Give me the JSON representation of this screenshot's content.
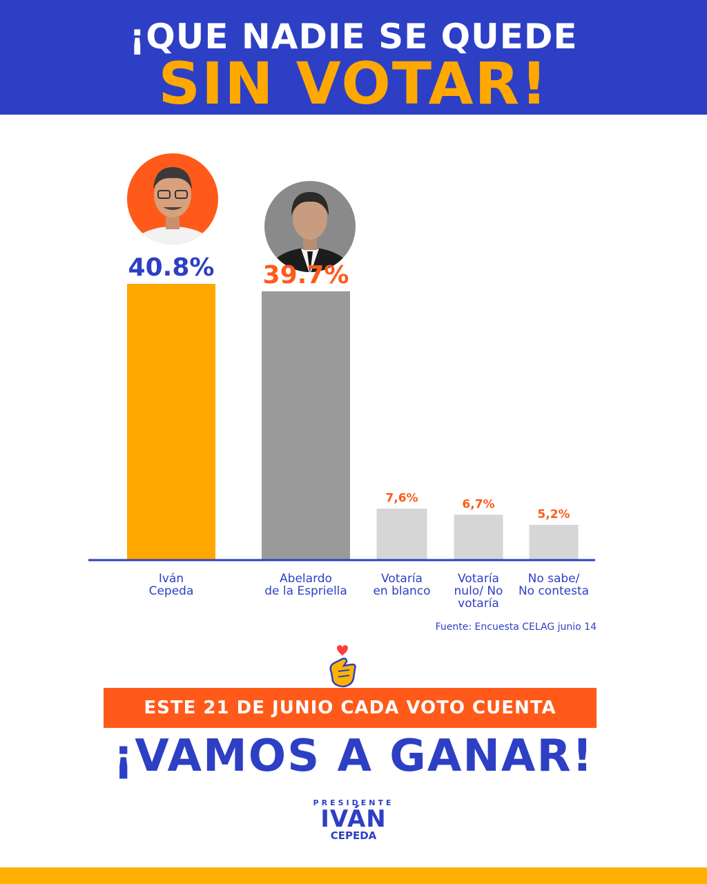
{
  "header": {
    "line1": "¡QUE NADIE SE QUEDE",
    "line2": "SIN VOTAR!"
  },
  "chart_data": {
    "type": "bar",
    "categories": [
      "Iván Cepeda",
      "Abelardo de la Espriella",
      "Votaría en blanco",
      "Votaría nulo/ No votaría",
      "No sabe/ No contesta"
    ],
    "category_lines": [
      [
        "Iván",
        "Cepeda"
      ],
      [
        "Abelardo",
        "de la Espriella"
      ],
      [
        "Votaría",
        "en blanco"
      ],
      [
        "Votaría",
        "nulo/ No",
        "votaría"
      ],
      [
        "No sabe/",
        "No contesta"
      ]
    ],
    "values": [
      40.8,
      39.7,
      7.6,
      6.7,
      5.2
    ],
    "value_labels": [
      "40.8%",
      "39.7%",
      "7,6%",
      "6,7%",
      "5,2%"
    ],
    "bar_colors": [
      "#ffa800",
      "#9a9a9a",
      "#d6d6d6",
      "#d6d6d6",
      "#d6d6d6"
    ],
    "label_colors": [
      "#2d3fc4",
      "#ff5a1a",
      "#ff5a1a",
      "#ff5a1a",
      "#ff5a1a"
    ],
    "photos": [
      "candidate-photo-ivan-cepeda",
      "candidate-photo-abelardo-de-la-espriella"
    ],
    "ylim": [
      0,
      40.8
    ],
    "grid": false,
    "axis_color": "#2d3fc4"
  },
  "source": "Fuente: Encuesta CELAG junio 14",
  "banner": "ESTE 21 DE JUNIO CADA VOTO CUENTA",
  "slogan": "¡VAMOS A GANAR!",
  "logo": {
    "small": "PRESIDENTE",
    "name": "IVÁN",
    "surname": "CEPEDA"
  },
  "colors": {
    "blue": "#2d3fc4",
    "orange": "#ff5a1a",
    "yellow": "#ffa800"
  }
}
